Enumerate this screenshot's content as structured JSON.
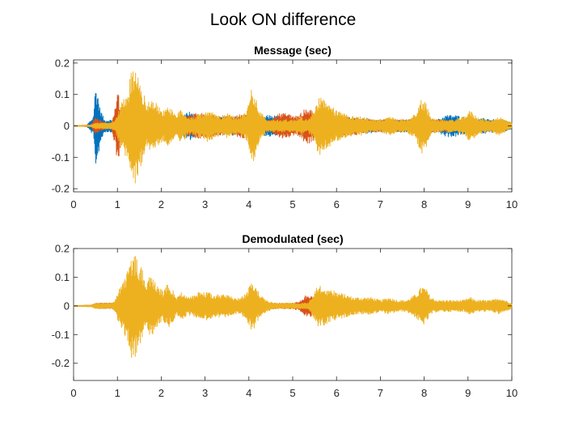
{
  "figure": {
    "title": "Look ON difference"
  },
  "chart_data": [
    {
      "type": "line",
      "title": "Message (sec)",
      "xlabel": "",
      "ylabel": "",
      "xlim": [
        0,
        10
      ],
      "ylim": [
        -0.21,
        0.21
      ],
      "xticks": [
        0,
        1,
        2,
        3,
        4,
        5,
        6,
        7,
        8,
        9,
        10
      ],
      "yticks": [
        -0.2,
        -0.1,
        0,
        0.1,
        0.2
      ],
      "grid": false,
      "legend": "none",
      "series": [
        {
          "color": "#0072BD",
          "envelope_x": [
            0,
            0.3,
            0.45,
            0.5,
            0.55,
            0.6,
            0.7,
            0.85,
            0.95,
            1.05,
            1.15,
            1.3,
            1.4,
            1.5,
            1.6,
            1.75,
            1.9,
            2.0,
            2.1,
            2.25,
            2.4,
            2.6,
            2.75,
            2.9,
            3.0,
            3.2,
            3.4,
            3.6,
            3.8,
            3.95,
            4.1,
            4.3,
            4.5,
            4.7,
            4.9,
            5.1,
            5.3,
            5.5,
            5.7,
            5.9,
            6.1,
            6.3,
            6.5,
            6.7,
            6.9,
            7.1,
            7.3,
            7.5,
            7.7,
            7.9,
            8.1,
            8.3,
            8.5,
            8.7,
            8.85,
            9.0,
            9.2,
            9.4,
            9.6,
            9.8,
            10.0
          ],
          "envelope_amp": [
            0.001,
            0.002,
            0.03,
            0.13,
            0.11,
            0.06,
            0.02,
            0.02,
            0.02,
            0.03,
            0.03,
            0.02,
            0.03,
            0.03,
            0.02,
            0.02,
            0.03,
            0.04,
            0.03,
            0.02,
            0.02,
            0.05,
            0.04,
            0.03,
            0.02,
            0.03,
            0.03,
            0.03,
            0.03,
            0.02,
            0.03,
            0.03,
            0.035,
            0.03,
            0.02,
            0.02,
            0.02,
            0.03,
            0.03,
            0.02,
            0.02,
            0.03,
            0.02,
            0.025,
            0.02,
            0.02,
            0.02,
            0.02,
            0.02,
            0.02,
            0.02,
            0.02,
            0.035,
            0.035,
            0.03,
            0.025,
            0.02,
            0.025,
            0.02,
            0.02,
            0.01
          ]
        },
        {
          "color": "#D95319",
          "envelope_x": [
            0,
            0.4,
            0.5,
            0.6,
            0.7,
            0.85,
            0.95,
            1.0,
            1.05,
            1.15,
            1.3,
            1.5,
            1.7,
            1.9,
            2.1,
            2.4,
            2.75,
            3.0,
            3.3,
            3.6,
            3.9,
            4.15,
            4.3,
            4.5,
            4.7,
            4.9,
            5.1,
            5.25,
            5.35,
            5.45,
            5.55,
            5.7,
            5.9,
            6.1,
            6.4,
            6.7,
            7.0,
            7.3,
            7.6,
            7.9,
            8.2,
            8.5,
            8.8,
            9.0,
            9.3,
            9.6,
            10.0
          ],
          "envelope_amp": [
            0.001,
            0.003,
            0.03,
            0.02,
            0.01,
            0.01,
            0.06,
            0.14,
            0.08,
            0.02,
            0.02,
            0.02,
            0.06,
            0.04,
            0.02,
            0.02,
            0.04,
            0.04,
            0.03,
            0.03,
            0.04,
            0.02,
            0.02,
            0.02,
            0.04,
            0.04,
            0.03,
            0.05,
            0.06,
            0.05,
            0.03,
            0.02,
            0.02,
            0.03,
            0.03,
            0.02,
            0.02,
            0.02,
            0.02,
            0.02,
            0.02,
            0.02,
            0.015,
            0.015,
            0.01,
            0.01,
            0.005
          ]
        },
        {
          "color": "#EDB120",
          "envelope_x": [
            0,
            0.4,
            0.5,
            0.6,
            0.7,
            0.85,
            0.95,
            1.05,
            1.15,
            1.25,
            1.35,
            1.42,
            1.5,
            1.58,
            1.65,
            1.75,
            1.85,
            1.95,
            2.05,
            2.15,
            2.25,
            2.35,
            2.45,
            2.6,
            2.75,
            2.9,
            3.05,
            3.2,
            3.35,
            3.5,
            3.65,
            3.8,
            3.95,
            4.08,
            4.15,
            4.25,
            4.4,
            4.6,
            4.8,
            5.0,
            5.2,
            5.35,
            5.5,
            5.6,
            5.8,
            6.0,
            6.2,
            6.4,
            6.6,
            6.8,
            7.0,
            7.2,
            7.4,
            7.6,
            7.8,
            7.95,
            8.05,
            8.15,
            8.3,
            8.5,
            8.7,
            8.9,
            9.05,
            9.2,
            9.4,
            9.55,
            9.7,
            9.85,
            10.0
          ],
          "envelope_amp": [
            0.001,
            0.003,
            0.01,
            0.01,
            0.01,
            0.01,
            0.02,
            0.06,
            0.09,
            0.12,
            0.2,
            0.18,
            0.14,
            0.12,
            0.07,
            0.09,
            0.08,
            0.06,
            0.05,
            0.07,
            0.05,
            0.03,
            0.06,
            0.03,
            0.03,
            0.04,
            0.05,
            0.04,
            0.03,
            0.04,
            0.03,
            0.03,
            0.05,
            0.13,
            0.09,
            0.05,
            0.02,
            0.02,
            0.02,
            0.02,
            0.03,
            0.02,
            0.05,
            0.1,
            0.07,
            0.05,
            0.04,
            0.03,
            0.03,
            0.02,
            0.02,
            0.03,
            0.02,
            0.02,
            0.04,
            0.09,
            0.07,
            0.03,
            0.02,
            0.02,
            0.02,
            0.03,
            0.05,
            0.03,
            0.02,
            0.02,
            0.03,
            0.02,
            0.01
          ]
        }
      ]
    },
    {
      "type": "line",
      "title": "Demodulated (sec)",
      "xlabel": "",
      "ylabel": "",
      "xlim": [
        0,
        10
      ],
      "ylim": [
        -0.26,
        0.2
      ],
      "xticks": [
        0,
        1,
        2,
        3,
        4,
        5,
        6,
        7,
        8,
        9,
        10
      ],
      "yticks": [
        -0.2,
        -0.1,
        0,
        0.1,
        0.2
      ],
      "grid": false,
      "legend": "none",
      "series": [
        {
          "color": "#0072BD",
          "envelope_x": [
            0,
            1.4,
            10
          ],
          "envelope_amp": [
            0.001,
            0.001,
            0.001
          ]
        },
        {
          "color": "#D95319",
          "envelope_x": [
            0,
            0.4,
            0.5,
            0.6,
            0.7,
            0.9,
            0.95,
            1.0,
            1.05,
            1.15,
            1.5,
            2.0,
            2.5,
            3.0,
            3.5,
            4.0,
            4.4,
            4.6,
            4.8,
            5.0,
            5.2,
            5.3,
            5.4,
            5.5,
            5.6,
            6.0,
            7.0,
            8.0,
            9.0,
            10.0
          ],
          "envelope_amp": [
            0.001,
            0.003,
            0.01,
            0.01,
            0.01,
            0.01,
            0.02,
            0.04,
            0.03,
            0.01,
            0.01,
            0.01,
            0.01,
            0.01,
            0.01,
            0.01,
            0.01,
            0.01,
            0.01,
            0.01,
            0.02,
            0.04,
            0.04,
            0.03,
            0.02,
            0.01,
            0.01,
            0.01,
            0.01,
            0.005
          ]
        },
        {
          "color": "#EDB120",
          "envelope_x": [
            0,
            0.4,
            0.5,
            0.6,
            0.7,
            0.85,
            0.95,
            1.05,
            1.15,
            1.25,
            1.35,
            1.42,
            1.5,
            1.58,
            1.65,
            1.75,
            1.85,
            1.95,
            2.05,
            2.15,
            2.25,
            2.35,
            2.45,
            2.6,
            2.75,
            2.9,
            3.05,
            3.2,
            3.35,
            3.5,
            3.65,
            3.8,
            3.95,
            4.08,
            4.15,
            4.25,
            4.4,
            4.6,
            4.8,
            5.0,
            5.2,
            5.35,
            5.5,
            5.6,
            5.8,
            6.0,
            6.2,
            6.4,
            6.6,
            6.8,
            7.0,
            7.2,
            7.4,
            7.6,
            7.8,
            7.95,
            8.05,
            8.15,
            8.3,
            8.5,
            8.7,
            8.9,
            9.05,
            9.2,
            9.4,
            9.55,
            9.7,
            9.85,
            10.0
          ],
          "envelope_amp": [
            0.001,
            0.003,
            0.01,
            0.01,
            0.01,
            0.01,
            0.02,
            0.07,
            0.1,
            0.13,
            0.2,
            0.18,
            0.15,
            0.13,
            0.07,
            0.11,
            0.09,
            0.07,
            0.05,
            0.08,
            0.06,
            0.03,
            0.05,
            0.03,
            0.04,
            0.05,
            0.05,
            0.04,
            0.04,
            0.04,
            0.03,
            0.03,
            0.05,
            0.09,
            0.07,
            0.04,
            0.02,
            0.01,
            0.01,
            0.01,
            0.01,
            0.01,
            0.05,
            0.08,
            0.06,
            0.05,
            0.04,
            0.03,
            0.03,
            0.03,
            0.02,
            0.03,
            0.02,
            0.02,
            0.04,
            0.07,
            0.06,
            0.03,
            0.02,
            0.02,
            0.02,
            0.02,
            0.03,
            0.02,
            0.02,
            0.02,
            0.03,
            0.02,
            0.01
          ]
        }
      ]
    }
  ]
}
